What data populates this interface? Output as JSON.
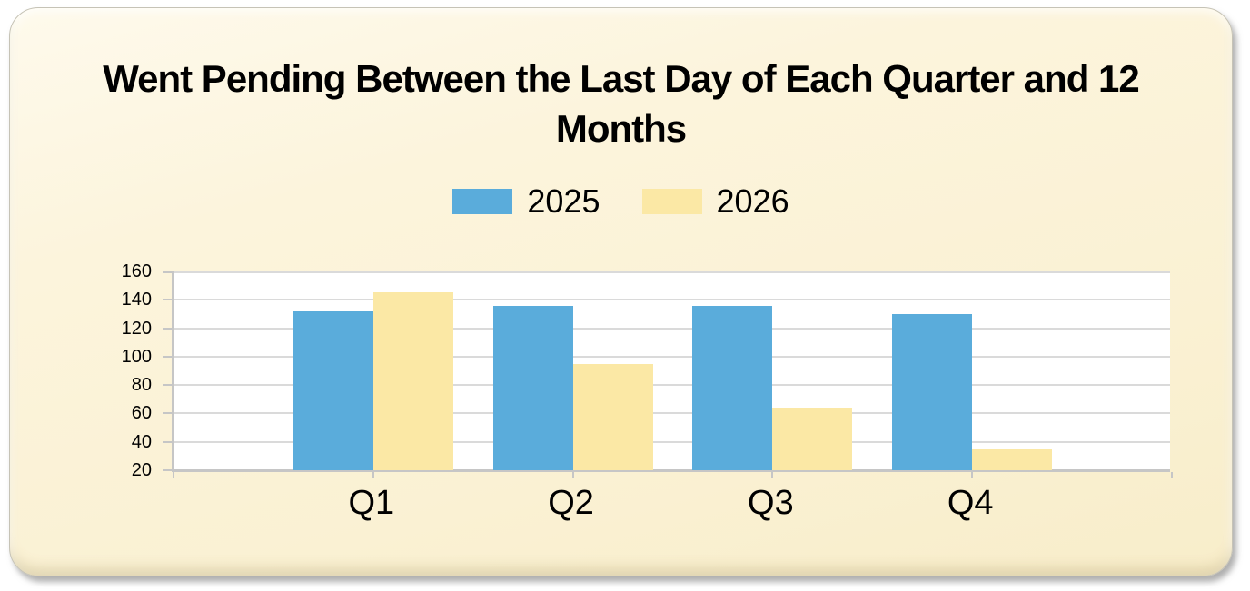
{
  "chart_data": {
    "type": "bar",
    "title": "Went Pending Between the Last Day of Each Quarter and 12 Months",
    "categories": [
      "Q1",
      "Q2",
      "Q3",
      "Q4"
    ],
    "series": [
      {
        "name": "2025",
        "color": "#5AACDB",
        "values": [
          132,
          136,
          136,
          130
        ]
      },
      {
        "name": "2026",
        "color": "#FBE8A5",
        "values": [
          145,
          95,
          64,
          35
        ]
      }
    ],
    "xlabel": "",
    "ylabel": "",
    "ylim": [
      20,
      160
    ],
    "ytick_step": 20,
    "yticks": [
      160,
      140,
      120,
      100,
      80,
      60,
      40,
      20
    ],
    "grid": true,
    "legend_position": "top-center",
    "colors": {
      "card_background": "#FBF2D7",
      "plot_background": "#FFFFFF",
      "gridline": "#DADADA",
      "axis": "#C6C6C6",
      "text": "#000000"
    }
  }
}
